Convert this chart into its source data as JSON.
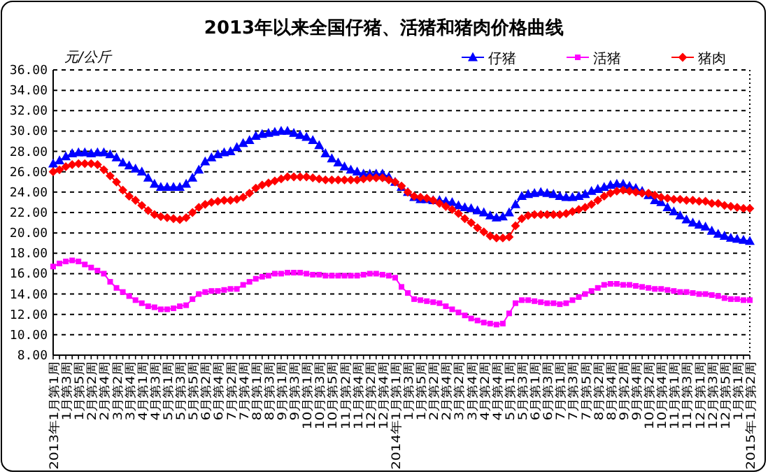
{
  "chart_data": {
    "type": "line",
    "title": "2013年以来全国仔猪、活猪和猪肉价格曲线",
    "ylabel": "元/公斤",
    "categories": [
      "2013年1月第1周",
      null,
      "1月第3周",
      null,
      "1月第5周",
      null,
      "2月第2周",
      null,
      "2月第4周",
      null,
      "3月第2周",
      null,
      "3月第4周",
      null,
      "4月第1周",
      null,
      "4月第3周",
      null,
      "5月第1周",
      null,
      "5月第3周",
      null,
      "5月第5周",
      null,
      "6月第2周",
      null,
      "6月第4周",
      null,
      "7月第2周",
      null,
      "7月第4周",
      null,
      "8月第1周",
      null,
      "8月第3周",
      null,
      "9月第1周",
      null,
      "9月第3周",
      null,
      "10月第1周",
      null,
      "10月第3周",
      null,
      "10月第5周",
      null,
      "11月第2周",
      null,
      "11月第4周",
      null,
      "12月第2周",
      null,
      "12月第4周",
      null,
      "2014年1月第1周",
      null,
      "1月第3周",
      null,
      "1月第5周",
      null,
      "2月第2周",
      null,
      "2月第4周",
      null,
      "3月第2周",
      null,
      "3月第4周",
      null,
      "4月第2周",
      null,
      "4月第4周",
      null,
      "5月第1周",
      null,
      "5月第3周",
      null,
      "6月第1周",
      null,
      "6月第3周",
      null,
      "7月第1周",
      null,
      "7月第3周",
      null,
      "7月第5周",
      null,
      "8月第2周",
      null,
      "8月第4周",
      null,
      "9月第2周",
      null,
      "9月第4周",
      null,
      "10月第2周",
      null,
      "10月第4周",
      null,
      "11月第1周",
      null,
      "11月第3周",
      null,
      "12月第1周",
      null,
      "12月第3周",
      null,
      "12月第5周",
      null,
      "1月第1周",
      null,
      "2015年1月第2周"
    ],
    "series": [
      {
        "name": "仔猪",
        "color": "#0000ff",
        "marker": "triangle",
        "values": [
          26.8,
          27.1,
          27.5,
          27.8,
          27.9,
          27.9,
          27.8,
          27.9,
          27.9,
          27.7,
          27.4,
          26.9,
          26.6,
          26.3,
          26.0,
          25.4,
          24.8,
          24.5,
          24.5,
          24.5,
          24.5,
          24.8,
          25.4,
          26.2,
          27.0,
          27.4,
          27.7,
          27.9,
          28.0,
          28.4,
          28.8,
          29.1,
          29.5,
          29.7,
          29.8,
          29.9,
          30.0,
          30.0,
          29.8,
          29.6,
          29.4,
          29.1,
          28.6,
          27.8,
          27.3,
          26.9,
          26.5,
          26.2,
          26.0,
          25.8,
          25.8,
          25.8,
          25.8,
          25.5,
          25.0,
          24.5,
          24.0,
          23.5,
          23.3,
          23.3,
          23.2,
          23.2,
          23.1,
          23.0,
          22.7,
          22.5,
          22.4,
          22.2,
          22.0,
          21.7,
          21.5,
          21.6,
          22.0,
          22.8,
          23.6,
          23.8,
          23.9,
          24.0,
          23.9,
          23.8,
          23.6,
          23.5,
          23.5,
          23.6,
          23.8,
          24.1,
          24.3,
          24.5,
          24.7,
          24.8,
          24.8,
          24.6,
          24.4,
          24.1,
          23.7,
          23.2,
          23.0,
          22.5,
          22.1,
          21.7,
          21.3,
          21.0,
          20.8,
          20.6,
          20.2,
          19.9,
          19.7,
          19.5,
          19.4,
          19.3,
          19.2
        ]
      },
      {
        "name": "活猪",
        "color": "#ff00ff",
        "marker": "square",
        "values": [
          16.7,
          17.0,
          17.2,
          17.3,
          17.2,
          16.9,
          16.6,
          16.3,
          16.0,
          15.2,
          14.6,
          14.2,
          13.8,
          13.4,
          13.1,
          12.8,
          12.7,
          12.5,
          12.5,
          12.6,
          12.8,
          12.9,
          13.5,
          14.0,
          14.2,
          14.3,
          14.3,
          14.4,
          14.5,
          14.5,
          14.9,
          15.2,
          15.5,
          15.7,
          15.8,
          16.0,
          16.0,
          16.1,
          16.1,
          16.1,
          16.0,
          15.9,
          15.9,
          15.8,
          15.8,
          15.8,
          15.8,
          15.8,
          15.8,
          15.9,
          16.0,
          16.0,
          15.9,
          15.8,
          15.6,
          14.7,
          14.1,
          13.5,
          13.4,
          13.3,
          13.2,
          13.1,
          12.8,
          12.5,
          12.2,
          11.9,
          11.6,
          11.4,
          11.2,
          11.1,
          11.0,
          11.1,
          12.1,
          13.1,
          13.4,
          13.4,
          13.3,
          13.2,
          13.1,
          13.1,
          13.0,
          13.1,
          13.4,
          13.7,
          14.0,
          14.3,
          14.6,
          14.9,
          15.0,
          15.0,
          14.9,
          14.9,
          14.8,
          14.7,
          14.6,
          14.5,
          14.5,
          14.4,
          14.3,
          14.2,
          14.2,
          14.1,
          14.0,
          14.0,
          13.9,
          13.8,
          13.6,
          13.5,
          13.5,
          13.4,
          13.4
        ]
      },
      {
        "name": "猪肉",
        "color": "#ff0000",
        "marker": "diamond",
        "values": [
          26.0,
          26.2,
          26.5,
          26.7,
          26.8,
          26.8,
          26.8,
          26.7,
          26.2,
          25.6,
          25.0,
          24.2,
          23.6,
          23.2,
          22.7,
          22.2,
          21.8,
          21.6,
          21.5,
          21.4,
          21.3,
          21.5,
          22.0,
          22.5,
          22.8,
          23.0,
          23.1,
          23.2,
          23.2,
          23.3,
          23.5,
          23.9,
          24.4,
          24.7,
          24.9,
          25.1,
          25.3,
          25.5,
          25.5,
          25.5,
          25.5,
          25.4,
          25.3,
          25.2,
          25.2,
          25.2,
          25.2,
          25.2,
          25.2,
          25.3,
          25.4,
          25.4,
          25.4,
          25.2,
          25.0,
          24.6,
          24.0,
          23.6,
          23.5,
          23.4,
          23.2,
          22.9,
          22.6,
          22.3,
          21.9,
          21.4,
          21.0,
          20.5,
          20.1,
          19.7,
          19.5,
          19.5,
          19.6,
          20.7,
          21.4,
          21.7,
          21.8,
          21.8,
          21.8,
          21.8,
          21.8,
          21.9,
          22.1,
          22.3,
          22.5,
          22.8,
          23.2,
          23.6,
          23.9,
          24.1,
          24.2,
          24.1,
          24.0,
          23.9,
          23.9,
          23.7,
          23.5,
          23.4,
          23.3,
          23.3,
          23.2,
          23.2,
          23.1,
          23.1,
          22.9,
          22.9,
          22.7,
          22.6,
          22.5,
          22.4,
          22.4
        ]
      }
    ],
    "ylim": [
      8,
      36
    ],
    "yticks": [
      {
        "value": 8,
        "label": "8.00"
      },
      {
        "value": 10,
        "label": "10.00"
      },
      {
        "value": 12,
        "label": "12.00"
      },
      {
        "value": 14,
        "label": "14.00"
      },
      {
        "value": 16,
        "label": "16.00"
      },
      {
        "value": 18,
        "label": "18.00"
      },
      {
        "value": 20,
        "label": "20.00"
      },
      {
        "value": 22,
        "label": "22.00"
      },
      {
        "value": 24,
        "label": "24.00"
      },
      {
        "value": 26,
        "label": "26.00"
      },
      {
        "value": 28,
        "label": "28.00"
      },
      {
        "value": 30,
        "label": "30.00"
      },
      {
        "value": 32,
        "label": "32.00"
      },
      {
        "value": 34,
        "label": "34.00"
      },
      {
        "value": 36,
        "label": "36.00"
      }
    ],
    "grid": "y",
    "legend": "top right"
  }
}
